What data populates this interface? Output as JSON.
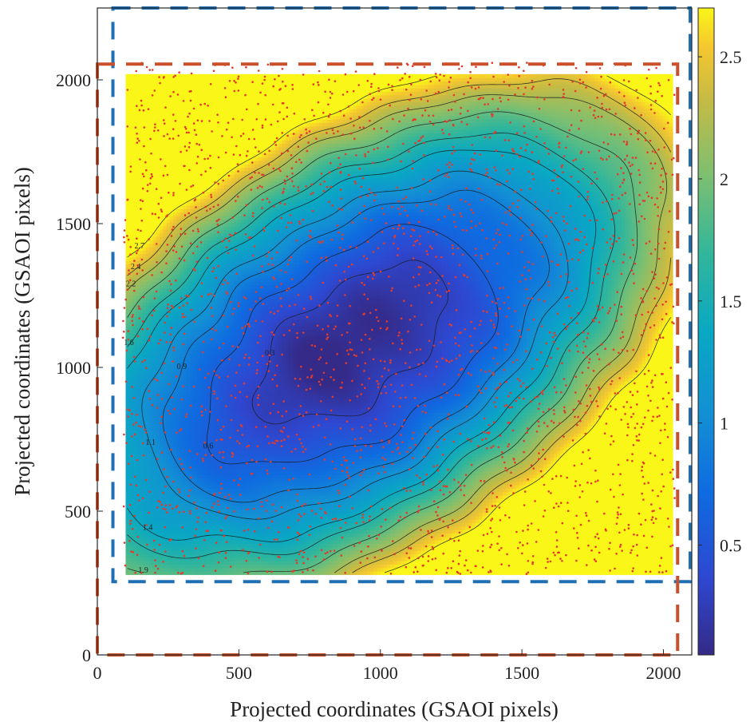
{
  "chart_data": {
    "type": "heatmap",
    "subtype": "filled contour map with scattered points",
    "xlabel": "Projected coordinates (GSAOI pixels)",
    "ylabel": "Projected coordinates (GSAOI pixels)",
    "xlim": [
      0,
      2100
    ],
    "ylim": [
      0,
      2250
    ],
    "x_ticks": [
      0,
      500,
      1000,
      1500,
      2000
    ],
    "y_ticks": [
      0,
      500,
      1000,
      1500,
      2000
    ],
    "x_tick_labels": [
      "0",
      "500",
      "1000",
      "1500",
      "2000"
    ],
    "y_tick_labels": [
      "0",
      "500",
      "1000",
      "1500",
      "2000"
    ],
    "colorbar": {
      "colormap": "parula",
      "range": [
        0.05,
        2.7
      ],
      "ticks": [
        0.5,
        1,
        1.5,
        2,
        2.5
      ],
      "tick_labels": [
        "0.5",
        "1",
        "1.5",
        "2",
        "2.5"
      ]
    },
    "field": {
      "minimum_center": [
        900,
        1070
      ],
      "x_extent": [
        100,
        2030
      ],
      "y_extent": [
        280,
        2010
      ],
      "min_value": 0.05,
      "max_value": 2.75
    },
    "contour_levels": [
      0.3,
      0.6,
      0.9,
      1.1,
      1.4,
      1.6,
      1.9,
      2.2,
      2.4,
      2.7
    ],
    "contour_labels": [
      "0.3",
      "0.6",
      "0.9",
      "1.1",
      "1.4",
      "1.6",
      "1.9",
      "2.2",
      "2.4",
      "2.7"
    ],
    "scatter": {
      "color": "#e23b2c",
      "approx_count": 2600,
      "x_range": [
        90,
        2040
      ],
      "y_range": [
        280,
        2060
      ]
    },
    "regions": [
      {
        "name": "blue dashed box",
        "color": "#1f6fb5",
        "x": [
          55,
          2100
        ],
        "y": [
          255,
          2250
        ]
      },
      {
        "name": "orange dashed box",
        "color": "#c9502a",
        "x": [
          0,
          2050
        ],
        "y": [
          0,
          2055
        ]
      }
    ]
  }
}
